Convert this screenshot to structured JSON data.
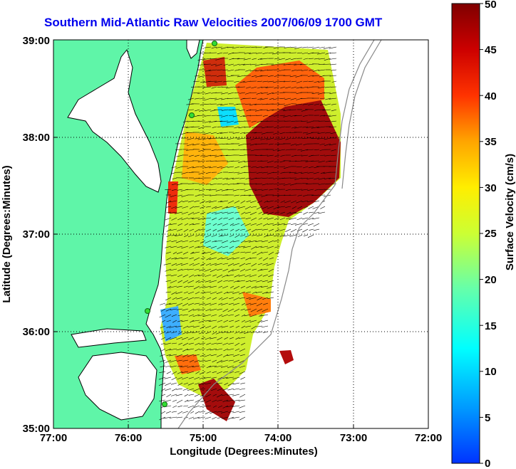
{
  "title": "Southern Mid-Atlantic Raw Velocities 2007/06/09 1700 GMT",
  "map": {
    "xlabel": "Longitude (Degrees:Minutes)",
    "ylabel": "Latitude (Degrees:Minutes)",
    "xticks": [
      "77:00",
      "76:00",
      "75:00",
      "74:00",
      "73:00",
      "72:00"
    ],
    "yticks": [
      "39:00",
      "38:00",
      "37:00",
      "36:00",
      "35:00"
    ],
    "xlim_deg_west": [
      77,
      72
    ],
    "ylim_deg_north": [
      35,
      39
    ],
    "grid": "dotted",
    "land_color": "#5ff5a8",
    "coastline_color": "#000000",
    "station_color": "#33dd33"
  },
  "colorbar": {
    "label": "Surface Velocity (cm/s)",
    "ticks": [
      "0",
      "5",
      "10",
      "15",
      "20",
      "25",
      "30",
      "35",
      "40",
      "45",
      "50"
    ],
    "range": [
      0,
      50
    ],
    "colormap": "jet"
  }
}
